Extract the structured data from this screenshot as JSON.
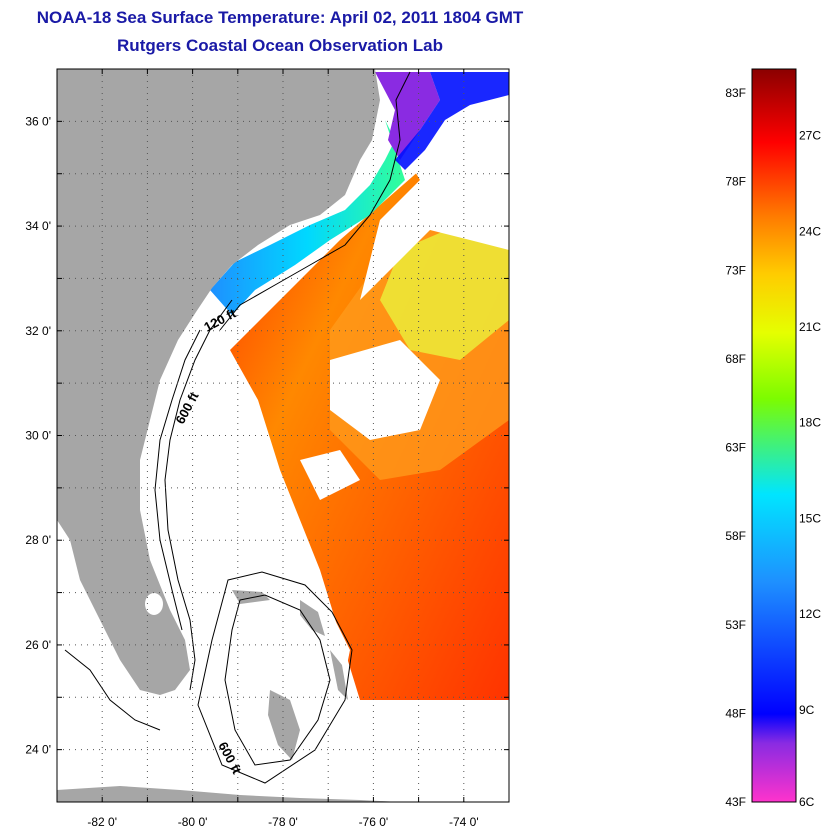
{
  "title": {
    "line1": "NOAA-18 Sea Surface Temperature:  April 02, 2011 1804 GMT",
    "line2": "Rutgers Coastal Ocean Observation Lab"
  },
  "map": {
    "lat_range": [
      23,
      37
    ],
    "lon_range": [
      -83,
      -73
    ],
    "lat_ticks": [
      {
        "value": 24,
        "label": "24 0'"
      },
      {
        "value": 26,
        "label": "26 0'"
      },
      {
        "value": 28,
        "label": "28 0'"
      },
      {
        "value": 30,
        "label": "30 0'"
      },
      {
        "value": 32,
        "label": "32 0'"
      },
      {
        "value": 34,
        "label": "34 0'"
      },
      {
        "value": 36,
        "label": "36 0'"
      }
    ],
    "lon_ticks": [
      {
        "value": -82,
        "label": "-82 0'"
      },
      {
        "value": -80,
        "label": "-80 0'"
      },
      {
        "value": -78,
        "label": "-78 0'"
      },
      {
        "value": -76,
        "label": "-76 0'"
      },
      {
        "value": -74,
        "label": "-74 0'"
      }
    ],
    "contour_labels": [
      "120 ft",
      "600 ft",
      "600 ft"
    ],
    "colors": {
      "land": "#a6a6a6",
      "ocean_nodata": "#ffffff",
      "grid": "#555555"
    }
  },
  "colorbar": {
    "fahrenheit_labels": [
      "83F",
      "78F",
      "73F",
      "68F",
      "63F",
      "58F",
      "53F",
      "48F",
      "43F"
    ],
    "celsius_labels": [
      "27C",
      "24C",
      "21C",
      "18C",
      "15C",
      "12C",
      "9C",
      "6C"
    ],
    "colors": [
      "#ff33cc",
      "#8a2be2",
      "#0000ff",
      "#00e0ff",
      "#7cfc00",
      "#ffff00",
      "#ff8c00",
      "#ff0000",
      "#8b0000"
    ]
  }
}
